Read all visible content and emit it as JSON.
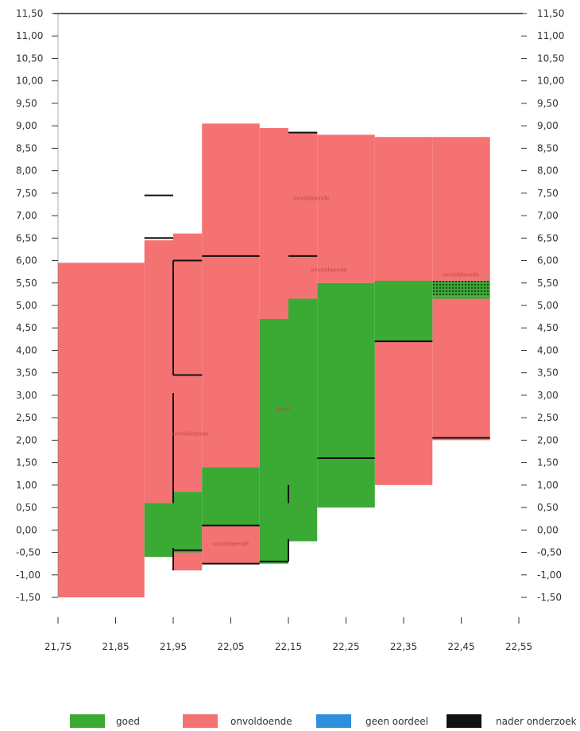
{
  "chart_data": {
    "type": "step-band-diagram",
    "xlim": [
      21.75,
      22.55
    ],
    "ylim": [
      -1.5,
      11.5
    ],
    "x_ticks": [
      "21,75",
      "21,85",
      "21,95",
      "22,05",
      "22,15",
      "22,25",
      "22,35",
      "22,45",
      "22,55"
    ],
    "x_tick_values": [
      21.75,
      21.85,
      21.95,
      22.05,
      22.15,
      22.25,
      22.35,
      22.45,
      22.55
    ],
    "y_ticks": [
      "-1,50",
      "-1,00",
      "-0,50",
      "0,00",
      "0,50",
      "1,00",
      "1,50",
      "2,00",
      "2,50",
      "3,00",
      "3,50",
      "4,00",
      "4,50",
      "5,00",
      "5,50",
      "6,00",
      "6,50",
      "7,00",
      "7,50",
      "8,00",
      "8,50",
      "9,00",
      "9,50",
      "10,00",
      "10,50",
      "11,00",
      "11,50"
    ],
    "y_tick_values": [
      -1.5,
      -1.0,
      -0.5,
      0.0,
      0.5,
      1.0,
      1.5,
      2.0,
      2.5,
      3.0,
      3.5,
      4.0,
      4.5,
      5.0,
      5.5,
      6.0,
      6.5,
      7.0,
      7.5,
      8.0,
      8.5,
      9.0,
      9.5,
      10.0,
      10.5,
      11.0,
      11.5
    ],
    "top_line_y": 11.5,
    "colors": {
      "goed": "#3aaa35",
      "onvoldoende": "#f47272",
      "geen_oordeel": "#2f8fdc",
      "nader_onderzoek": "#111111"
    },
    "red_bands": [
      {
        "x0": 21.75,
        "x1": 21.9,
        "ylo": -1.5,
        "yhi": 5.95
      },
      {
        "x0": 21.9,
        "x1": 21.95,
        "ylo": 0.6,
        "yhi": 6.45
      },
      {
        "x0": 21.95,
        "x1": 22.0,
        "ylo": 0.85,
        "yhi": 6.6
      },
      {
        "x0": 22.0,
        "x1": 22.05,
        "ylo": 1.4,
        "yhi": 9.05
      },
      {
        "x0": 22.05,
        "x1": 22.1,
        "ylo": 1.4,
        "yhi": 9.05
      },
      {
        "x0": 22.1,
        "x1": 22.15,
        "ylo": 4.7,
        "yhi": 8.95
      },
      {
        "x0": 22.15,
        "x1": 22.2,
        "ylo": 5.15,
        "yhi": 8.85
      },
      {
        "x0": 22.2,
        "x1": 22.3,
        "ylo": 5.5,
        "yhi": 8.8
      },
      {
        "x0": 22.3,
        "x1": 22.4,
        "ylo": 5.5,
        "yhi": 8.75
      },
      {
        "x0": 22.4,
        "x1": 22.5,
        "ylo": 5.55,
        "yhi": 8.75
      },
      {
        "x0": 22.3,
        "x1": 22.4,
        "ylo": 1.0,
        "yhi": 4.2
      },
      {
        "x0": 22.4,
        "x1": 22.5,
        "ylo": 2.0,
        "yhi": 5.15
      },
      {
        "x0": 21.95,
        "x1": 22.0,
        "ylo": -0.9,
        "yhi": -0.5
      },
      {
        "x0": 22.0,
        "x1": 22.1,
        "ylo": -0.75,
        "yhi": 0.1
      }
    ],
    "green_bands": [
      {
        "x0": 21.9,
        "x1": 21.95,
        "ylo": -0.6,
        "yhi": 0.6
      },
      {
        "x0": 21.95,
        "x1": 22.0,
        "ylo": -0.5,
        "yhi": 0.85
      },
      {
        "x0": 22.0,
        "x1": 22.1,
        "ylo": 0.1,
        "yhi": 1.4
      },
      {
        "x0": 22.1,
        "x1": 22.15,
        "ylo": -0.75,
        "yhi": 4.7
      },
      {
        "x0": 22.15,
        "x1": 22.2,
        "ylo": -0.25,
        "yhi": 5.15
      },
      {
        "x0": 22.2,
        "x1": 22.3,
        "ylo": 0.5,
        "yhi": 5.5
      },
      {
        "x0": 22.3,
        "x1": 22.4,
        "ylo": 4.2,
        "yhi": 5.55
      },
      {
        "x0": 22.4,
        "x1": 22.5,
        "ylo": 5.15,
        "yhi": 5.2
      }
    ],
    "dotted_bands": [
      {
        "x0": 22.4,
        "x1": 22.5,
        "ylo": 5.2,
        "yhi": 5.55
      }
    ],
    "black_lines": [
      {
        "x0": 21.9,
        "x1": 21.95,
        "y0": 7.45,
        "y1": 7.45
      },
      {
        "x0": 21.9,
        "x1": 21.95,
        "y0": 6.5,
        "y1": 6.5
      },
      {
        "x0": 21.95,
        "x1": 22.0,
        "y0": 6.0,
        "y1": 6.0
      },
      {
        "x0": 22.0,
        "x1": 22.1,
        "y0": 6.1,
        "y1": 6.1
      },
      {
        "x0": 21.95,
        "x1": 21.95,
        "y0": 3.45,
        "y1": 6.0
      },
      {
        "x0": 21.95,
        "x1": 22.0,
        "y0": 3.45,
        "y1": 3.45
      },
      {
        "x0": 21.95,
        "x1": 21.95,
        "y0": 0.6,
        "y1": 3.05
      },
      {
        "x0": 21.95,
        "x1": 21.95,
        "y0": -0.9,
        "y1": -0.4
      },
      {
        "x0": 21.95,
        "x1": 22.0,
        "y0": -0.45,
        "y1": -0.45
      },
      {
        "x0": 22.0,
        "x1": 22.1,
        "y0": 0.1,
        "y1": 0.1
      },
      {
        "x0": 22.0,
        "x1": 22.1,
        "y0": -0.75,
        "y1": -0.75
      },
      {
        "x0": 22.1,
        "x1": 22.15,
        "y0": -0.7,
        "y1": -0.7
      },
      {
        "x0": 22.15,
        "x1": 22.15,
        "y0": -0.7,
        "y1": -0.2
      },
      {
        "x0": 22.15,
        "x1": 22.2,
        "y0": 8.85,
        "y1": 8.85
      },
      {
        "x0": 22.15,
        "x1": 22.2,
        "y0": 6.1,
        "y1": 6.1
      },
      {
        "x0": 22.15,
        "x1": 22.15,
        "y0": 0.6,
        "y1": 1.0
      },
      {
        "x0": 22.2,
        "x1": 22.3,
        "y0": 1.6,
        "y1": 1.6
      },
      {
        "x0": 22.3,
        "x1": 22.4,
        "y0": 4.2,
        "y1": 4.2
      },
      {
        "x0": 22.4,
        "x1": 22.5,
        "y0": 2.05,
        "y1": 2.05
      }
    ],
    "region_labels": [
      {
        "x": 22.19,
        "y": 7.35,
        "text": "onvoldoende"
      },
      {
        "x": 22.22,
        "y": 5.75,
        "text": "onvoldoende"
      },
      {
        "x": 21.98,
        "y": 2.1,
        "text": "onvoldoende"
      },
      {
        "x": 22.14,
        "y": 2.65,
        "text": "goed"
      },
      {
        "x": 22.05,
        "y": -0.35,
        "text": "onvoldoende"
      },
      {
        "x": 22.45,
        "y": 5.65,
        "text": "onvoldoende"
      }
    ],
    "legend": [
      {
        "label": "goed",
        "color": "#3aaa35"
      },
      {
        "label": "onvoldoende",
        "color": "#f47272"
      },
      {
        "label": "geen oordeel",
        "color": "#2f8fdc"
      },
      {
        "label": "nader onderzoek",
        "color": "#111111"
      }
    ]
  }
}
